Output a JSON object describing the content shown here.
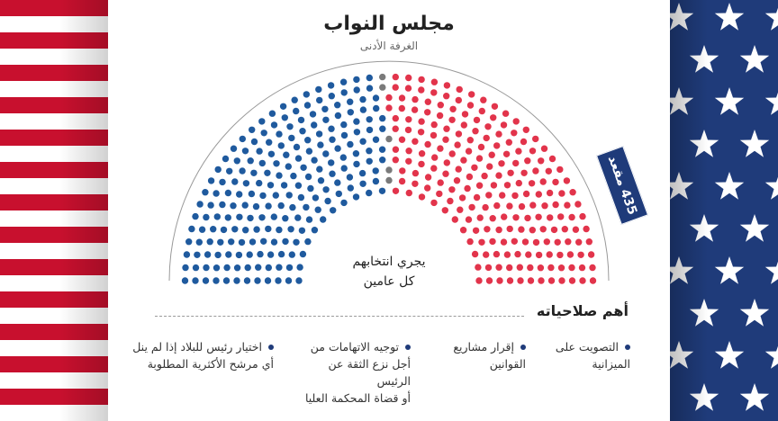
{
  "title": "مجلس النواب",
  "subtitle": "الغرفة الأدنى",
  "center_text": {
    "line1": "يجري انتخابهم",
    "line2": "كل عامين"
  },
  "seats_badge": "435 مقعد",
  "section_title": "أهم صلاحياته",
  "powers": [
    {
      "line1": "التصويت على",
      "line2": "الميزانية",
      "line3": ""
    },
    {
      "line1": "إقرار مشاريع",
      "line2": "القوانين",
      "line3": ""
    },
    {
      "line1": "توجيه الاتهامات من",
      "line2": "أجل نزع الثقة عن الرئيس",
      "line3": "أو قضاة المحكمة العليا"
    },
    {
      "line1": "اختيار رئيس للبلاد إذا لم ينل",
      "line2": "أي مرشح الأكثرية المطلوبة",
      "line3": ""
    }
  ],
  "chart_data": {
    "type": "parliament",
    "total": 435,
    "groups": [
      {
        "color": "#1f5a9e",
        "seats": 213
      },
      {
        "color": "#7a7a7a",
        "seats": 5
      },
      {
        "color": "#e2344b",
        "seats": 217
      }
    ]
  },
  "colors": {
    "blue": "#1f5a9e",
    "red": "#e2344b",
    "gray": "#7a7a7a",
    "navy": "#1f3b7a",
    "flag_red": "#c8102e"
  }
}
